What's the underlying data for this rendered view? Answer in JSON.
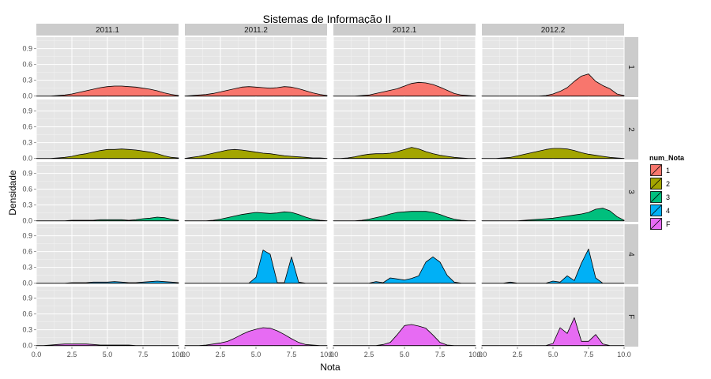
{
  "chart_data": {
    "type": "area",
    "title": "Sistemas de Informação II",
    "xlabel": "Nota",
    "ylabel": "Densidade",
    "xlim": [
      0,
      10
    ],
    "ylim": [
      -0.02,
      1.12
    ],
    "xticks": [
      "0.0",
      "2.5",
      "5.0",
      "7.5",
      "10.0"
    ],
    "x_tick_values": [
      0,
      2.5,
      5,
      7.5,
      10
    ],
    "yticks": [
      "0.0",
      "0.3",
      "0.6",
      "0.9"
    ],
    "y_tick_values": [
      0,
      0.3,
      0.6,
      0.9
    ],
    "grid": true,
    "legend_position": "right",
    "facet_columns": [
      "2011.1",
      "2011.2",
      "2012.1",
      "2012.2"
    ],
    "facet_rows": [
      "1",
      "2",
      "3",
      "4",
      "F"
    ],
    "legend": {
      "title": "num_Nota",
      "entries": [
        {
          "label": "1",
          "color": "#F8766D"
        },
        {
          "label": "2",
          "color": "#A3A500"
        },
        {
          "label": "3",
          "color": "#00BF7D"
        },
        {
          "label": "4",
          "color": "#00B0F6"
        },
        {
          "label": "F",
          "color": "#E76BF3"
        }
      ]
    },
    "x_grid": [
      0,
      0.5,
      1,
      1.5,
      2,
      2.5,
      3,
      3.5,
      4,
      4.5,
      5,
      5.5,
      6,
      6.5,
      7,
      7.5,
      8,
      8.5,
      9,
      9.5,
      10
    ],
    "panels": [
      [
        [
          0.0,
          0.0,
          0.0,
          0.01,
          0.02,
          0.04,
          0.07,
          0.1,
          0.13,
          0.16,
          0.18,
          0.19,
          0.19,
          0.18,
          0.17,
          0.15,
          0.13,
          0.1,
          0.06,
          0.03,
          0.01
        ],
        [
          0.0,
          0.0,
          0.0,
          0.01,
          0.02,
          0.04,
          0.07,
          0.09,
          0.12,
          0.15,
          0.17,
          0.17,
          0.18,
          0.17,
          0.16,
          0.14,
          0.12,
          0.09,
          0.05,
          0.02,
          0.01
        ],
        [
          0.0,
          0.0,
          0.0,
          0.0,
          0.0,
          0.01,
          0.01,
          0.01,
          0.01,
          0.02,
          0.02,
          0.02,
          0.02,
          0.01,
          0.02,
          0.04,
          0.05,
          0.07,
          0.06,
          0.03,
          0.01
        ],
        [
          0.0,
          0.0,
          0.0,
          0.0,
          0.0,
          0.01,
          0.01,
          0.01,
          0.02,
          0.02,
          0.02,
          0.03,
          0.02,
          0.01,
          0.01,
          0.02,
          0.03,
          0.04,
          0.03,
          0.02,
          0.01
        ],
        [
          0.0,
          0.0,
          0.01,
          0.02,
          0.03,
          0.03,
          0.03,
          0.03,
          0.02,
          0.01,
          0.01,
          0.01,
          0.01,
          0.01,
          0.0,
          0.0,
          0.0,
          0.0,
          0.0,
          0.0,
          0.0
        ]
      ],
      [
        [
          0.0,
          0.01,
          0.02,
          0.03,
          0.05,
          0.08,
          0.11,
          0.14,
          0.17,
          0.18,
          0.17,
          0.16,
          0.15,
          0.16,
          0.18,
          0.17,
          0.14,
          0.1,
          0.06,
          0.03,
          0.01
        ],
        [
          0.0,
          0.02,
          0.04,
          0.07,
          0.1,
          0.13,
          0.16,
          0.17,
          0.16,
          0.14,
          0.12,
          0.1,
          0.09,
          0.07,
          0.05,
          0.04,
          0.03,
          0.02,
          0.01,
          0.01,
          0.0
        ],
        [
          0.0,
          0.0,
          0.0,
          0.0,
          0.01,
          0.03,
          0.06,
          0.09,
          0.12,
          0.14,
          0.16,
          0.15,
          0.14,
          0.15,
          0.17,
          0.16,
          0.12,
          0.07,
          0.03,
          0.01,
          0.0
        ],
        [
          0.0,
          0.0,
          0.0,
          0.0,
          0.0,
          0.0,
          0.0,
          0.0,
          0.0,
          0.0,
          0.11,
          0.63,
          0.55,
          0.01,
          0.01,
          0.5,
          0.02,
          0.0,
          0.0,
          0.0,
          0.0
        ],
        [
          0.0,
          0.0,
          0.0,
          0.01,
          0.03,
          0.05,
          0.08,
          0.14,
          0.21,
          0.27,
          0.31,
          0.34,
          0.33,
          0.28,
          0.21,
          0.13,
          0.06,
          0.02,
          0.01,
          0.0,
          0.0
        ]
      ],
      [
        [
          0.0,
          0.0,
          0.0,
          0.0,
          0.01,
          0.02,
          0.05,
          0.08,
          0.11,
          0.14,
          0.19,
          0.24,
          0.26,
          0.25,
          0.22,
          0.17,
          0.11,
          0.05,
          0.02,
          0.01,
          0.0
        ],
        [
          0.0,
          0.0,
          0.01,
          0.03,
          0.06,
          0.08,
          0.09,
          0.09,
          0.1,
          0.13,
          0.17,
          0.21,
          0.18,
          0.13,
          0.09,
          0.06,
          0.04,
          0.02,
          0.01,
          0.0,
          0.0
        ],
        [
          0.0,
          0.0,
          0.0,
          0.0,
          0.01,
          0.03,
          0.06,
          0.09,
          0.13,
          0.16,
          0.17,
          0.18,
          0.18,
          0.18,
          0.16,
          0.12,
          0.07,
          0.03,
          0.01,
          0.0,
          0.0
        ],
        [
          0.0,
          0.0,
          0.0,
          0.0,
          0.0,
          0.0,
          0.03,
          0.01,
          0.1,
          0.08,
          0.06,
          0.09,
          0.14,
          0.4,
          0.5,
          0.4,
          0.15,
          0.02,
          0.0,
          0.0,
          0.0
        ],
        [
          0.0,
          0.0,
          0.0,
          0.0,
          0.0,
          0.0,
          0.0,
          0.02,
          0.06,
          0.21,
          0.38,
          0.4,
          0.37,
          0.33,
          0.2,
          0.06,
          0.01,
          0.0,
          0.0,
          0.0,
          0.0
        ]
      ],
      [
        [
          0.0,
          0.0,
          0.0,
          0.0,
          0.0,
          0.0,
          0.0,
          0.0,
          0.0,
          0.01,
          0.04,
          0.09,
          0.16,
          0.28,
          0.38,
          0.42,
          0.28,
          0.2,
          0.14,
          0.04,
          0.01
        ],
        [
          0.0,
          0.0,
          0.0,
          0.01,
          0.02,
          0.05,
          0.08,
          0.11,
          0.14,
          0.17,
          0.19,
          0.19,
          0.18,
          0.15,
          0.11,
          0.08,
          0.06,
          0.04,
          0.02,
          0.01,
          0.0
        ],
        [
          0.0,
          0.0,
          0.0,
          0.0,
          0.0,
          0.0,
          0.01,
          0.02,
          0.03,
          0.04,
          0.05,
          0.07,
          0.09,
          0.11,
          0.13,
          0.16,
          0.22,
          0.24,
          0.19,
          0.08,
          0.01
        ],
        [
          0.0,
          0.0,
          0.0,
          0.0,
          0.02,
          0.0,
          0.0,
          0.0,
          0.0,
          0.0,
          0.04,
          0.02,
          0.14,
          0.05,
          0.38,
          0.65,
          0.1,
          0.0,
          0.0,
          0.0,
          0.0
        ],
        [
          0.0,
          0.0,
          0.0,
          0.0,
          0.0,
          0.0,
          0.0,
          0.0,
          0.0,
          0.0,
          0.04,
          0.34,
          0.23,
          0.53,
          0.08,
          0.08,
          0.21,
          0.03,
          0.0,
          0.0,
          0.0
        ]
      ]
    ]
  }
}
